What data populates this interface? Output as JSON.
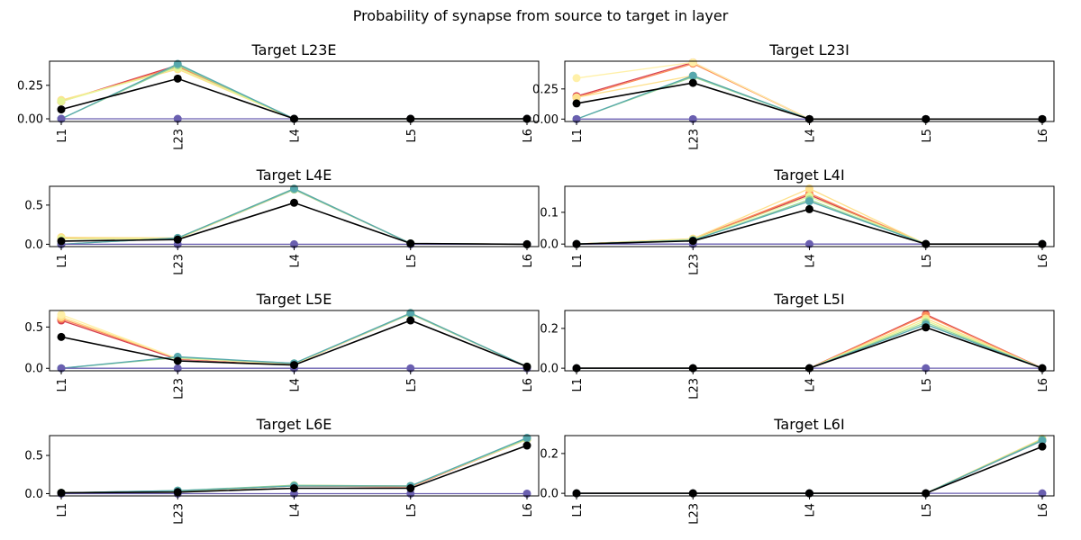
{
  "figure": {
    "title": "Probability of synapse from source to target in layer"
  },
  "chart_data": [
    {
      "type": "line",
      "title": "Target L23E",
      "categories": [
        "L1",
        "L23",
        "L4",
        "L5",
        "L6"
      ],
      "ylim": [
        -0.02,
        0.43
      ],
      "yticks": [
        0.0,
        0.25
      ],
      "ytick_labels": [
        "0.00",
        "0.25"
      ],
      "grid": false,
      "series": [
        {
          "color": "#d53e4f",
          "values": [
            0.13,
            0.4,
            0.0,
            0.0,
            0.0
          ]
        },
        {
          "color": "#fc8d59",
          "values": [
            0.13,
            0.39,
            0.0,
            0.0,
            0.0
          ]
        },
        {
          "color": "#fee08b",
          "values": [
            0.14,
            0.37,
            0.0,
            0.0,
            0.0
          ]
        },
        {
          "color": "#e6f598",
          "values": [
            0.13,
            0.38,
            0.0,
            0.0,
            0.0
          ]
        },
        {
          "color": "#99d594",
          "values": [
            0.0,
            0.4,
            0.0,
            0.0,
            0.0
          ]
        },
        {
          "color": "#56a8ad",
          "values": [
            0.0,
            0.41,
            0.0,
            0.0,
            0.0
          ]
        },
        {
          "color": "#6a5fb0",
          "values": [
            0.0,
            0.0,
            0.0,
            0.0,
            0.0
          ]
        },
        {
          "color": "#000000",
          "values": [
            0.07,
            0.3,
            0.0,
            0.0,
            0.0
          ]
        }
      ]
    },
    {
      "type": "line",
      "title": "Target L23I",
      "categories": [
        "L1",
        "L23",
        "L4",
        "L5",
        "L6"
      ],
      "ylim": [
        -0.02,
        0.48
      ],
      "yticks": [
        0.0,
        0.25
      ],
      "ytick_labels": [
        "0.00",
        "0.25"
      ],
      "grid": false,
      "series": [
        {
          "color": "#d53e4f",
          "values": [
            0.19,
            0.47,
            0.0,
            0.0,
            0.0
          ]
        },
        {
          "color": "#fc8d59",
          "values": [
            0.18,
            0.46,
            0.0,
            0.0,
            0.0
          ]
        },
        {
          "color": "#fee08b",
          "values": [
            0.18,
            0.36,
            0.0,
            0.0,
            0.0
          ]
        },
        {
          "color": "#fff0a8",
          "values": [
            0.34,
            0.47,
            0.0,
            0.0,
            0.0
          ]
        },
        {
          "color": "#99d594",
          "values": [
            0.0,
            0.35,
            0.0,
            0.0,
            0.0
          ]
        },
        {
          "color": "#56a8ad",
          "values": [
            0.0,
            0.36,
            0.0,
            0.0,
            0.0
          ]
        },
        {
          "color": "#6a5fb0",
          "values": [
            0.0,
            0.0,
            0.0,
            0.0,
            0.0
          ]
        },
        {
          "color": "#000000",
          "values": [
            0.13,
            0.3,
            0.0,
            0.0,
            0.0
          ]
        }
      ]
    },
    {
      "type": "line",
      "title": "Target L4E",
      "categories": [
        "L1",
        "L23",
        "L4",
        "L5",
        "L6"
      ],
      "ylim": [
        -0.03,
        0.74
      ],
      "yticks": [
        0.0,
        0.5
      ],
      "ytick_labels": [
        "0.0",
        "0.5"
      ],
      "grid": false,
      "series": [
        {
          "color": "#d53e4f",
          "values": [
            0.07,
            0.07,
            0.7,
            0.01,
            0.0
          ]
        },
        {
          "color": "#fc8d59",
          "values": [
            0.08,
            0.07,
            0.7,
            0.01,
            0.0
          ]
        },
        {
          "color": "#fee08b",
          "values": [
            0.09,
            0.08,
            0.71,
            0.01,
            0.0
          ]
        },
        {
          "color": "#e6f598",
          "values": [
            0.07,
            0.07,
            0.7,
            0.01,
            0.0
          ]
        },
        {
          "color": "#99d594",
          "values": [
            0.0,
            0.08,
            0.7,
            0.01,
            0.0
          ]
        },
        {
          "color": "#56a8ad",
          "values": [
            0.0,
            0.08,
            0.71,
            0.01,
            0.0
          ]
        },
        {
          "color": "#6a5fb0",
          "values": [
            0.0,
            0.0,
            0.0,
            0.0,
            0.0
          ]
        },
        {
          "color": "#000000",
          "values": [
            0.04,
            0.06,
            0.53,
            0.01,
            0.0
          ]
        }
      ]
    },
    {
      "type": "line",
      "title": "Target L4I",
      "categories": [
        "L1",
        "L23",
        "L4",
        "L5",
        "L6"
      ],
      "ylim": [
        -0.008,
        0.182
      ],
      "yticks": [
        0.0,
        0.1
      ],
      "ytick_labels": [
        "0.0",
        "0.1"
      ],
      "grid": false,
      "series": [
        {
          "color": "#d53e4f",
          "values": [
            0.0,
            0.015,
            0.155,
            0.0,
            0.0
          ]
        },
        {
          "color": "#fc8d59",
          "values": [
            0.0,
            0.016,
            0.16,
            0.0,
            0.0
          ]
        },
        {
          "color": "#fee08b",
          "values": [
            0.0,
            0.017,
            0.175,
            0.0,
            0.0
          ]
        },
        {
          "color": "#e6f598",
          "values": [
            0.0,
            0.014,
            0.15,
            0.0,
            0.0
          ]
        },
        {
          "color": "#99d594",
          "values": [
            0.0,
            0.012,
            0.14,
            0.0,
            0.0
          ]
        },
        {
          "color": "#56a8ad",
          "values": [
            0.0,
            0.012,
            0.135,
            0.0,
            0.0
          ]
        },
        {
          "color": "#6a5fb0",
          "values": [
            0.0,
            0.0,
            0.0,
            0.0,
            0.0
          ]
        },
        {
          "color": "#000000",
          "values": [
            0.0,
            0.01,
            0.11,
            0.0,
            0.0
          ]
        }
      ]
    },
    {
      "type": "line",
      "title": "Target L5E",
      "categories": [
        "L1",
        "L23",
        "L4",
        "L5",
        "L6"
      ],
      "ylim": [
        -0.03,
        0.7
      ],
      "yticks": [
        0.0,
        0.5
      ],
      "ytick_labels": [
        "0.0",
        "0.5"
      ],
      "grid": false,
      "series": [
        {
          "color": "#d53e4f",
          "values": [
            0.58,
            0.11,
            0.05,
            0.66,
            0.02
          ]
        },
        {
          "color": "#fc8d59",
          "values": [
            0.6,
            0.12,
            0.05,
            0.66,
            0.02
          ]
        },
        {
          "color": "#fee08b",
          "values": [
            0.62,
            0.12,
            0.05,
            0.67,
            0.02
          ]
        },
        {
          "color": "#fff0a8",
          "values": [
            0.65,
            0.12,
            0.05,
            0.66,
            0.02
          ]
        },
        {
          "color": "#99d594",
          "values": [
            0.0,
            0.13,
            0.06,
            0.66,
            0.02
          ]
        },
        {
          "color": "#56a8ad",
          "values": [
            0.0,
            0.14,
            0.06,
            0.67,
            0.02
          ]
        },
        {
          "color": "#6a5fb0",
          "values": [
            0.0,
            0.0,
            0.0,
            0.0,
            0.0
          ]
        },
        {
          "color": "#000000",
          "values": [
            0.38,
            0.09,
            0.04,
            0.58,
            0.02
          ]
        }
      ]
    },
    {
      "type": "line",
      "title": "Target L5I",
      "categories": [
        "L1",
        "L23",
        "L4",
        "L5",
        "L6"
      ],
      "ylim": [
        -0.013,
        0.29
      ],
      "yticks": [
        0.0,
        0.2
      ],
      "ytick_labels": [
        "0.0",
        "0.2"
      ],
      "grid": false,
      "series": [
        {
          "color": "#d53e4f",
          "values": [
            0.0,
            0.0,
            0.0,
            0.27,
            0.0
          ]
        },
        {
          "color": "#fc8d59",
          "values": [
            0.0,
            0.0,
            0.0,
            0.265,
            0.0
          ]
        },
        {
          "color": "#fee08b",
          "values": [
            0.0,
            0.0,
            0.0,
            0.25,
            0.0
          ]
        },
        {
          "color": "#e6f598",
          "values": [
            0.0,
            0.0,
            0.0,
            0.24,
            0.0
          ]
        },
        {
          "color": "#99d594",
          "values": [
            0.0,
            0.0,
            0.0,
            0.23,
            0.0
          ]
        },
        {
          "color": "#56a8ad",
          "values": [
            0.0,
            0.0,
            0.0,
            0.22,
            0.0
          ]
        },
        {
          "color": "#6a5fb0",
          "values": [
            0.0,
            0.0,
            0.0,
            0.0,
            0.0
          ]
        },
        {
          "color": "#000000",
          "values": [
            0.0,
            0.0,
            0.0,
            0.205,
            0.0
          ]
        }
      ]
    },
    {
      "type": "line",
      "title": "Target L6E",
      "categories": [
        "L1",
        "L23",
        "L4",
        "L5",
        "L6"
      ],
      "ylim": [
        -0.03,
        0.76
      ],
      "yticks": [
        0.0,
        0.5
      ],
      "ytick_labels": [
        "0.0",
        "0.5"
      ],
      "grid": false,
      "series": [
        {
          "color": "#d53e4f",
          "values": [
            0.01,
            0.03,
            0.1,
            0.09,
            0.71
          ]
        },
        {
          "color": "#fc8d59",
          "values": [
            0.01,
            0.03,
            0.1,
            0.09,
            0.71
          ]
        },
        {
          "color": "#fee08b",
          "values": [
            0.01,
            0.03,
            0.11,
            0.1,
            0.72
          ]
        },
        {
          "color": "#e6f598",
          "values": [
            0.01,
            0.03,
            0.1,
            0.1,
            0.71
          ]
        },
        {
          "color": "#99d594",
          "values": [
            0.01,
            0.04,
            0.11,
            0.1,
            0.72
          ]
        },
        {
          "color": "#56a8ad",
          "values": [
            0.01,
            0.04,
            0.1,
            0.1,
            0.73
          ]
        },
        {
          "color": "#6a5fb0",
          "values": [
            0.0,
            0.0,
            0.0,
            0.0,
            0.0
          ]
        },
        {
          "color": "#000000",
          "values": [
            0.01,
            0.02,
            0.07,
            0.07,
            0.63
          ]
        }
      ]
    },
    {
      "type": "line",
      "title": "Target L6I",
      "categories": [
        "L1",
        "L23",
        "L4",
        "L5",
        "L6"
      ],
      "ylim": [
        -0.013,
        0.29
      ],
      "yticks": [
        0.0,
        0.2
      ],
      "ytick_labels": [
        "0.0",
        "0.2"
      ],
      "grid": false,
      "series": [
        {
          "color": "#d53e4f",
          "values": [
            0.0,
            0.0,
            0.0,
            0.0,
            0.265
          ]
        },
        {
          "color": "#fc8d59",
          "values": [
            0.0,
            0.0,
            0.0,
            0.0,
            0.27
          ]
        },
        {
          "color": "#fee08b",
          "values": [
            0.0,
            0.0,
            0.0,
            0.0,
            0.275
          ]
        },
        {
          "color": "#e6f598",
          "values": [
            0.0,
            0.0,
            0.0,
            0.0,
            0.268
          ]
        },
        {
          "color": "#99d594",
          "values": [
            0.0,
            0.0,
            0.0,
            0.0,
            0.27
          ]
        },
        {
          "color": "#56a8ad",
          "values": [
            0.0,
            0.0,
            0.0,
            0.0,
            0.265
          ]
        },
        {
          "color": "#6a5fb0",
          "values": [
            0.0,
            0.0,
            0.0,
            0.0,
            0.0
          ]
        },
        {
          "color": "#000000",
          "values": [
            0.0,
            0.0,
            0.0,
            0.0,
            0.235
          ]
        }
      ]
    }
  ]
}
